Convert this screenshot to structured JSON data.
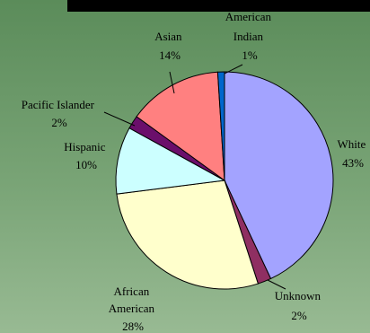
{
  "chart_data": {
    "type": "pie",
    "title": "",
    "slices": [
      {
        "label": "White",
        "value": 43,
        "display": "43%",
        "color": "#a3a3ff"
      },
      {
        "label": "Unknown",
        "value": 2,
        "display": "2%",
        "color": "#8f2f62"
      },
      {
        "label": "African American",
        "value": 28,
        "display": "28%",
        "color": "#ffffcc"
      },
      {
        "label": "Hispanic",
        "value": 10,
        "display": "10%",
        "color": "#ccffff"
      },
      {
        "label": "Pacific Islander",
        "value": 2,
        "display": "2%",
        "color": "#6b0f6b"
      },
      {
        "label": "Asian",
        "value": 14,
        "display": "14%",
        "color": "#ff8080"
      },
      {
        "label": "American Indian",
        "value": 1,
        "display": "1%",
        "color": "#0066cc"
      }
    ]
  }
}
